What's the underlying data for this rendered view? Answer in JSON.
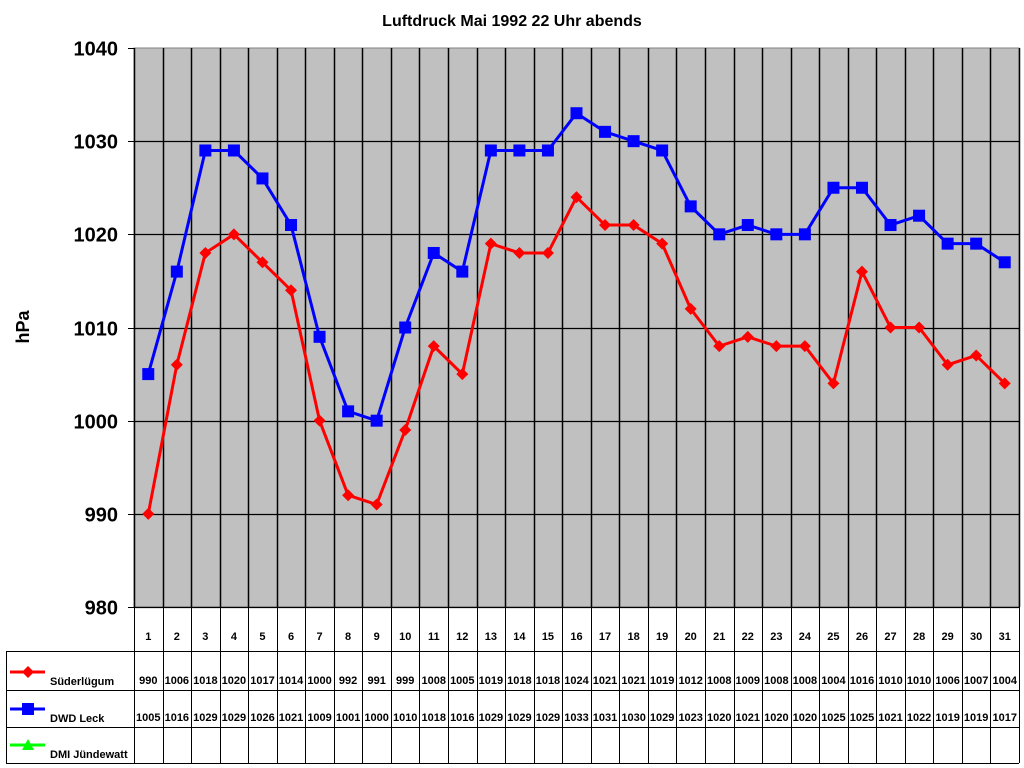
{
  "chart_data": {
    "type": "line",
    "title": "Luftdruck Mai 1992 22 Uhr abends",
    "xlabel": "",
    "ylabel": "hPa",
    "ylim": [
      980,
      1040
    ],
    "yticks": [
      980,
      990,
      1000,
      1010,
      1020,
      1030,
      1040
    ],
    "grid": true,
    "legend_position": "data-table-left",
    "plot_background": "#c0c0c0",
    "categories": [
      "1",
      "2",
      "3",
      "4",
      "5",
      "6",
      "7",
      "8",
      "9",
      "10",
      "11",
      "12",
      "13",
      "14",
      "15",
      "16",
      "17",
      "18",
      "19",
      "20",
      "21",
      "22",
      "23",
      "24",
      "25",
      "26",
      "27",
      "28",
      "29",
      "30",
      "31"
    ],
    "series": [
      {
        "name": "Süderlügum",
        "color": "#ff0000",
        "marker": "diamond",
        "values": [
          990,
          1006,
          1018,
          1020,
          1017,
          1014,
          1000,
          992,
          991,
          999,
          1008,
          1005,
          1019,
          1018,
          1018,
          1024,
          1021,
          1021,
          1019,
          1012,
          1008,
          1009,
          1008,
          1008,
          1004,
          1016,
          1010,
          1010,
          1006,
          1007,
          1004
        ]
      },
      {
        "name": "DWD Leck",
        "color": "#0000ff",
        "marker": "square",
        "values": [
          1005,
          1016,
          1029,
          1029,
          1026,
          1021,
          1009,
          1001,
          1000,
          1010,
          1018,
          1016,
          1029,
          1029,
          1029,
          1033,
          1031,
          1030,
          1029,
          1023,
          1020,
          1021,
          1020,
          1020,
          1025,
          1025,
          1021,
          1022,
          1019,
          1019,
          1017
        ]
      },
      {
        "name": "DMI Jündewatt",
        "color": "#00ff00",
        "marker": "triangle",
        "values": [
          null,
          null,
          null,
          null,
          null,
          null,
          null,
          null,
          null,
          null,
          null,
          null,
          null,
          null,
          null,
          null,
          null,
          null,
          null,
          null,
          null,
          null,
          null,
          null,
          null,
          null,
          null,
          null,
          null,
          null,
          null
        ]
      }
    ]
  }
}
